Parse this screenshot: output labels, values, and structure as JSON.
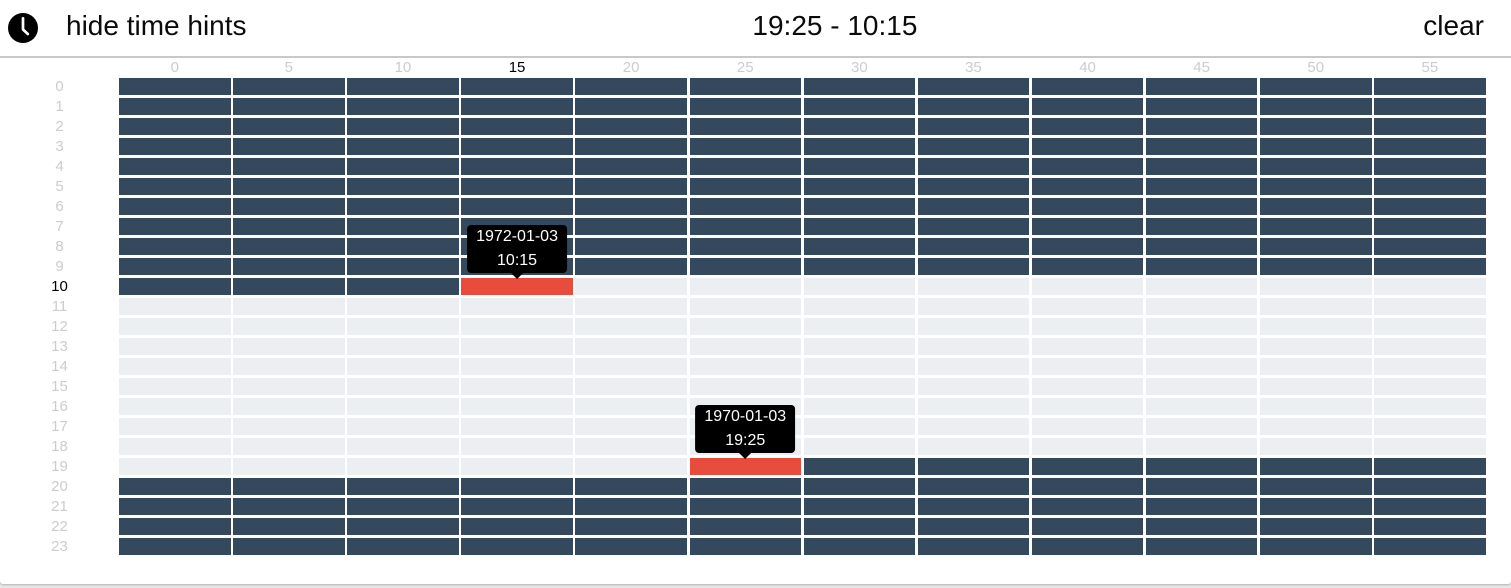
{
  "header": {
    "hide_hints_label": "hide time hints",
    "range_display": "19:25 - 10:15",
    "clear_label": "clear"
  },
  "grid": {
    "hour_labels": [
      "0",
      "1",
      "2",
      "3",
      "4",
      "5",
      "6",
      "7",
      "8",
      "9",
      "10",
      "11",
      "12",
      "13",
      "14",
      "15",
      "16",
      "17",
      "18",
      "19",
      "20",
      "21",
      "22",
      "23"
    ],
    "minute_labels": [
      "0",
      "5",
      "10",
      "15",
      "20",
      "25",
      "30",
      "35",
      "40",
      "45",
      "50",
      "55"
    ],
    "selection": {
      "start": "19:25",
      "end": "10:15"
    },
    "highlighted": {
      "hour_label": "10",
      "minute_label": "15"
    },
    "tooltips": [
      {
        "date": "1972-01-03",
        "time": "10:15"
      },
      {
        "date": "1970-01-03",
        "time": "19:25"
      }
    ],
    "colors": {
      "selected": "#34495e",
      "unselected": "#eceff1",
      "marker": "#e74c3c",
      "tooltip_bg": "#000000",
      "tooltip_text": "#ffffff"
    }
  }
}
